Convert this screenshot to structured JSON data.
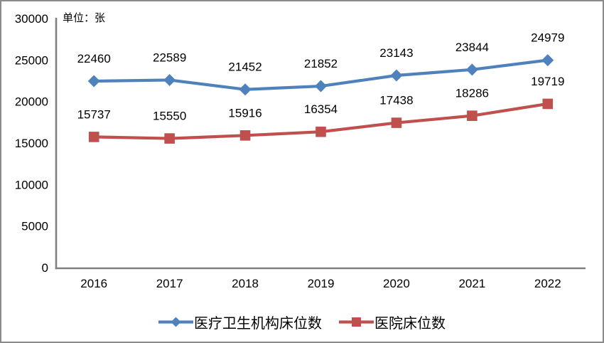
{
  "chart_data": {
    "type": "line",
    "unit_label": "单位：张",
    "categories": [
      "2016",
      "2017",
      "2018",
      "2019",
      "2020",
      "2021",
      "2022"
    ],
    "series": [
      {
        "name": "医疗卫生机构床位数",
        "values": [
          22460,
          22589,
          21452,
          21852,
          23143,
          23844,
          24979
        ],
        "color": "#4F81BD",
        "marker": "diamond"
      },
      {
        "name": "医院床位数",
        "values": [
          15737,
          15550,
          15916,
          16354,
          17438,
          18286,
          19719
        ],
        "color": "#C0504D",
        "marker": "square"
      }
    ],
    "ylim": [
      0,
      30000
    ],
    "ytick_step": 5000,
    "yticks": [
      "0",
      "5000",
      "10000",
      "15000",
      "20000",
      "25000",
      "30000"
    ],
    "grid": false,
    "legend_position": "bottom",
    "data_labels": true,
    "axis_color": "#808080",
    "text_color": "#000000",
    "border_color": "#8a8a8a"
  }
}
